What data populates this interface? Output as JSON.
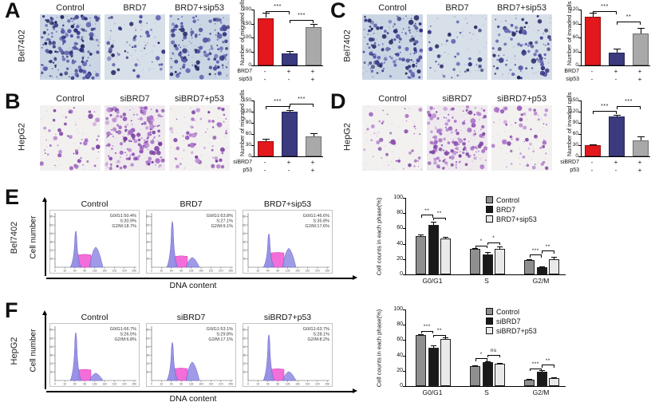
{
  "panels": {
    "A": {
      "letter": "A",
      "cell_line": "Bel7402",
      "image_style": "blue",
      "images": [
        {
          "label": "Control",
          "density": 155
        },
        {
          "label": "BRD7",
          "density": 42
        },
        {
          "label": "BRD7+sip53",
          "density": 125
        }
      ],
      "chart": {
        "ylabel": "Number of migrated cells",
        "ymax": 200,
        "yticks": [
          0,
          50,
          100,
          150,
          200
        ],
        "values": [
          170,
          42,
          137
        ],
        "errors": [
          18,
          10,
          12
        ],
        "colors": [
          "#e3181c",
          "#3c3a7e",
          "#a9a9a9"
        ],
        "sig": [
          {
            "a": 0,
            "b": 1,
            "label": "***",
            "y": 193
          },
          {
            "a": 1,
            "b": 2,
            "label": "***",
            "y": 162
          }
        ],
        "rows": [
          {
            "name": "BRD7",
            "signs": [
              "-",
              "+",
              "+"
            ]
          },
          {
            "name": "sip53",
            "signs": [
              "-",
              "-",
              "+"
            ]
          }
        ]
      }
    },
    "B": {
      "letter": "B",
      "cell_line": "HepG2",
      "image_style": "purple",
      "images": [
        {
          "label": "Control",
          "density": 48
        },
        {
          "label": "siBRD7",
          "density": 160
        },
        {
          "label": "siBRD7+p53",
          "density": 58
        }
      ],
      "chart": {
        "ylabel": "Number of migrated cells",
        "ymax": 150,
        "yticks": [
          0,
          30,
          60,
          90,
          120,
          150
        ],
        "values": [
          41,
          120,
          53
        ],
        "errors": [
          6,
          5,
          9
        ],
        "colors": [
          "#e3181c",
          "#3c3a7e",
          "#a9a9a9"
        ],
        "sig": [
          {
            "a": 0,
            "b": 1,
            "label": "***",
            "y": 134
          },
          {
            "a": 1,
            "b": 2,
            "label": "***",
            "y": 142
          }
        ],
        "rows": [
          {
            "name": "siBRD7",
            "signs": [
              "-",
              "+",
              "+"
            ]
          },
          {
            "name": "p53",
            "signs": [
              "-",
              "-",
              "+"
            ]
          }
        ]
      }
    },
    "C": {
      "letter": "C",
      "cell_line": "Bel7402",
      "image_style": "blue",
      "images": [
        {
          "label": "Control",
          "density": 125
        },
        {
          "label": "BRD7",
          "density": 32
        },
        {
          "label": "BRD7+sip53",
          "density": 82
        }
      ],
      "chart": {
        "ylabel": "Number of invaded cells",
        "ymax": 120,
        "yticks": [
          0,
          30,
          60,
          90,
          120
        ],
        "values": [
          105,
          27,
          69
        ],
        "errors": [
          8,
          9,
          11
        ],
        "colors": [
          "#e3181c",
          "#3c3a7e",
          "#a9a9a9"
        ],
        "sig": [
          {
            "a": 0,
            "b": 1,
            "label": "***",
            "y": 116
          },
          {
            "a": 1,
            "b": 2,
            "label": "**",
            "y": 94
          }
        ],
        "rows": [
          {
            "name": "BRD7",
            "signs": [
              "-",
              "+",
              "+"
            ]
          },
          {
            "name": "sip53",
            "signs": [
              "-",
              "-",
              "+"
            ]
          }
        ]
      }
    },
    "D": {
      "letter": "D",
      "cell_line": "HepG2",
      "image_style": "purple",
      "images": [
        {
          "label": "Control",
          "density": 38
        },
        {
          "label": "siBRD7",
          "density": 145
        },
        {
          "label": "siBRD7+p53",
          "density": 52
        }
      ],
      "chart": {
        "ylabel": "Number of invaded cells",
        "ymax": 150,
        "yticks": [
          0,
          30,
          60,
          90,
          120,
          150
        ],
        "values": [
          29,
          107,
          43
        ],
        "errors": [
          4,
          5,
          10
        ],
        "colors": [
          "#e3181c",
          "#3c3a7e",
          "#a9a9a9"
        ],
        "sig": [
          {
            "a": 0,
            "b": 1,
            "label": "***",
            "y": 123
          },
          {
            "a": 1,
            "b": 2,
            "label": "***",
            "y": 136
          }
        ],
        "rows": [
          {
            "name": "siBRD7",
            "signs": [
              "-",
              "+",
              "+"
            ]
          },
          {
            "name": "p53",
            "signs": [
              "-",
              "-",
              "+"
            ]
          }
        ]
      }
    },
    "E": {
      "letter": "E",
      "cell_line": "Bel7402",
      "axis_y": "Cell number",
      "axis_x": "DNA content",
      "hist_xticks": [
        "0",
        "32",
        "64",
        "96",
        "128",
        "160",
        "192",
        "224",
        "256"
      ],
      "hist_yticks": [
        "60",
        "120",
        "180",
        "240",
        "300",
        "360"
      ],
      "histograms": [
        {
          "label": "Control",
          "lines": [
            "G0/G1:50.4%",
            "S:30.9%",
            "G2/M:18.7%"
          ],
          "g1": 50.4,
          "s": 30.9,
          "g2": 18.7
        },
        {
          "label": "BRD7",
          "lines": [
            "G0/G1:63.8%",
            "S:27.1%",
            "G2/M:9.1%"
          ],
          "g1": 63.8,
          "s": 27.1,
          "g2": 9.1
        },
        {
          "label": "BRD7+sip53",
          "lines": [
            "G0/G1:46.6%",
            "S:35.8%",
            "G2/M:17.6%"
          ],
          "g1": 46.6,
          "s": 35.8,
          "g2": 17.6
        }
      ],
      "chart": {
        "ylabel": "Cell counts in each phase(%)",
        "yticks": [
          0,
          20,
          40,
          60,
          80,
          100
        ],
        "categories": [
          "G0/G1",
          "S",
          "G2/M"
        ],
        "legend": [
          "Control",
          "BRD7",
          "BRD7+sip53"
        ],
        "colors": [
          "#8f8f8f",
          "#1a1a1a",
          "#e9e9e9"
        ],
        "series": [
          {
            "name": "Control",
            "values": [
              50,
              33,
              19
            ],
            "errors": [
              2,
              1.5,
              1
            ]
          },
          {
            "name": "BRD7",
            "values": [
              65,
              26,
              9.5
            ],
            "errors": [
              4,
              3,
              1
            ]
          },
          {
            "name": "BRD7+sip53",
            "values": [
              47,
              33,
              20
            ],
            "errors": [
              2,
              3,
              3
            ]
          }
        ],
        "sig": [
          {
            "cat": 0,
            "a": 0,
            "b": 1,
            "label": "**",
            "y": 78
          },
          {
            "cat": 0,
            "a": 1,
            "b": 2,
            "label": "**",
            "y": 74
          },
          {
            "cat": 1,
            "a": 0,
            "b": 1,
            "label": "*",
            "y": 38
          },
          {
            "cat": 1,
            "a": 1,
            "b": 2,
            "label": "*",
            "y": 42
          },
          {
            "cat": 2,
            "a": 0,
            "b": 1,
            "label": "***",
            "y": 26
          },
          {
            "cat": 2,
            "a": 1,
            "b": 2,
            "label": "**",
            "y": 31
          }
        ]
      }
    },
    "F": {
      "letter": "F",
      "cell_line": "HepG2",
      "axis_y": "Cell number",
      "axis_x": "DNA content",
      "hist_xticks": [
        "0",
        "32",
        "64",
        "96",
        "128",
        "160",
        "192",
        "224",
        "256"
      ],
      "hist_yticks": [
        "60",
        "120",
        "180",
        "240",
        "300",
        "360"
      ],
      "histograms": [
        {
          "label": "Control",
          "lines": [
            "G0/G1:66.7%",
            "S:26.5%",
            "G2/M:6.8%"
          ],
          "g1": 66.7,
          "s": 26.5,
          "g2": 6.8
        },
        {
          "label": "siBRD7",
          "lines": [
            "G0/G1:53.1%",
            "S:29.8%",
            "G2/M:17.1%"
          ],
          "g1": 53.1,
          "s": 29.8,
          "g2": 17.1
        },
        {
          "label": "siBRD7+p53",
          "lines": [
            "G0/G1:63.7%",
            "S:28.1%",
            "G2/M:8.2%"
          ],
          "g1": 63.7,
          "s": 28.1,
          "g2": 8.2
        }
      ],
      "chart": {
        "ylabel": "Cell counts in each phase(%)",
        "yticks": [
          0,
          20,
          40,
          60,
          80,
          100
        ],
        "categories": [
          "G0/G1",
          "S",
          "G2/M"
        ],
        "legend": [
          "Control",
          "siBRD7",
          "siBRD7+p53"
        ],
        "colors": [
          "#8f8f8f",
          "#1a1a1a",
          "#e9e9e9"
        ],
        "series": [
          {
            "name": "Control",
            "values": [
              66.5,
              26,
              8
            ],
            "errors": [
              1,
              1,
              1
            ]
          },
          {
            "name": "siBRD7",
            "values": [
              50,
              31.5,
              19
            ],
            "errors": [
              3,
              1,
              1.5
            ]
          },
          {
            "name": "siBRD7+p53",
            "values": [
              61.5,
              29,
              10.5
            ],
            "errors": [
              2,
              1,
              1
            ]
          }
        ],
        "sig": [
          {
            "cat": 0,
            "a": 0,
            "b": 1,
            "label": "***",
            "y": 72
          },
          {
            "cat": 0,
            "a": 1,
            "b": 2,
            "label": "**",
            "y": 67
          },
          {
            "cat": 1,
            "a": 0,
            "b": 1,
            "label": "*",
            "y": 36
          },
          {
            "cat": 1,
            "a": 1,
            "b": 2,
            "label": "ns",
            "y": 41
          },
          {
            "cat": 2,
            "a": 0,
            "b": 1,
            "label": "***",
            "y": 23
          },
          {
            "cat": 2,
            "a": 1,
            "b": 2,
            "label": "**",
            "y": 28
          }
        ]
      }
    }
  },
  "chart_data": [
    {
      "id": "A",
      "type": "bar",
      "cell_line": "Bel7402",
      "ylabel": "Number of migrated cells",
      "ylim": [
        0,
        200
      ],
      "categories": [
        "Control",
        "BRD7",
        "BRD7+sip53"
      ],
      "values": [
        170,
        42,
        137
      ],
      "errors": [
        18,
        10,
        12
      ],
      "significance": [
        {
          "between": [
            "Control",
            "BRD7"
          ],
          "label": "***"
        },
        {
          "between": [
            "BRD7",
            "BRD7+sip53"
          ],
          "label": "***"
        }
      ]
    },
    {
      "id": "B",
      "type": "bar",
      "cell_line": "HepG2",
      "ylabel": "Number of migrated cells",
      "ylim": [
        0,
        150
      ],
      "categories": [
        "Control",
        "siBRD7",
        "siBRD7+p53"
      ],
      "values": [
        41,
        120,
        53
      ],
      "errors": [
        6,
        5,
        9
      ],
      "significance": [
        {
          "between": [
            "Control",
            "siBRD7"
          ],
          "label": "***"
        },
        {
          "between": [
            "siBRD7",
            "siBRD7+p53"
          ],
          "label": "***"
        }
      ]
    },
    {
      "id": "C",
      "type": "bar",
      "cell_line": "Bel7402",
      "ylabel": "Number of invaded cells",
      "ylim": [
        0,
        120
      ],
      "categories": [
        "Control",
        "BRD7",
        "BRD7+sip53"
      ],
      "values": [
        105,
        27,
        69
      ],
      "errors": [
        8,
        9,
        11
      ],
      "significance": [
        {
          "between": [
            "Control",
            "BRD7"
          ],
          "label": "***"
        },
        {
          "between": [
            "BRD7",
            "BRD7+sip53"
          ],
          "label": "**"
        }
      ]
    },
    {
      "id": "D",
      "type": "bar",
      "cell_line": "HepG2",
      "ylabel": "Number of invaded cells",
      "ylim": [
        0,
        150
      ],
      "categories": [
        "Control",
        "siBRD7",
        "siBRD7+p53"
      ],
      "values": [
        29,
        107,
        43
      ],
      "errors": [
        4,
        5,
        10
      ],
      "significance": [
        {
          "between": [
            "Control",
            "siBRD7"
          ],
          "label": "***"
        },
        {
          "between": [
            "siBRD7",
            "siBRD7+p53"
          ],
          "label": "***"
        }
      ]
    },
    {
      "id": "E-flow",
      "type": "histogram",
      "cell_line": "Bel7402",
      "xlabel": "DNA content",
      "ylabel": "Cell number",
      "conditions": [
        {
          "name": "Control",
          "G0G1_pct": 50.4,
          "S_pct": 30.9,
          "G2M_pct": 18.7
        },
        {
          "name": "BRD7",
          "G0G1_pct": 63.8,
          "S_pct": 27.1,
          "G2M_pct": 9.1
        },
        {
          "name": "BRD7+sip53",
          "G0G1_pct": 46.6,
          "S_pct": 35.8,
          "G2M_pct": 17.6
        }
      ]
    },
    {
      "id": "E-bar",
      "type": "bar",
      "cell_line": "Bel7402",
      "ylabel": "Cell counts in each phase(%)",
      "ylim": [
        0,
        100
      ],
      "categories": [
        "G0/G1",
        "S",
        "G2/M"
      ],
      "legend_position": "top",
      "series": [
        {
          "name": "Control",
          "values": [
            50,
            33,
            19
          ]
        },
        {
          "name": "BRD7",
          "values": [
            65,
            26,
            9.5
          ]
        },
        {
          "name": "BRD7+sip53",
          "values": [
            47,
            33,
            20
          ]
        }
      ]
    },
    {
      "id": "F-flow",
      "type": "histogram",
      "cell_line": "HepG2",
      "xlabel": "DNA content",
      "ylabel": "Cell number",
      "conditions": [
        {
          "name": "Control",
          "G0G1_pct": 66.7,
          "S_pct": 26.5,
          "G2M_pct": 6.8
        },
        {
          "name": "siBRD7",
          "G0G1_pct": 53.1,
          "S_pct": 29.8,
          "G2M_pct": 17.1
        },
        {
          "name": "siBRD7+p53",
          "G0G1_pct": 63.7,
          "S_pct": 28.1,
          "G2M_pct": 8.2
        }
      ]
    },
    {
      "id": "F-bar",
      "type": "bar",
      "cell_line": "HepG2",
      "ylabel": "Cell counts in each phase(%)",
      "ylim": [
        0,
        100
      ],
      "categories": [
        "G0/G1",
        "S",
        "G2/M"
      ],
      "legend_position": "top",
      "series": [
        {
          "name": "Control",
          "values": [
            66.5,
            26,
            8
          ]
        },
        {
          "name": "siBRD7",
          "values": [
            50,
            31.5,
            19
          ]
        },
        {
          "name": "siBRD7+p53",
          "values": [
            61.5,
            29,
            10.5
          ]
        }
      ]
    }
  ]
}
